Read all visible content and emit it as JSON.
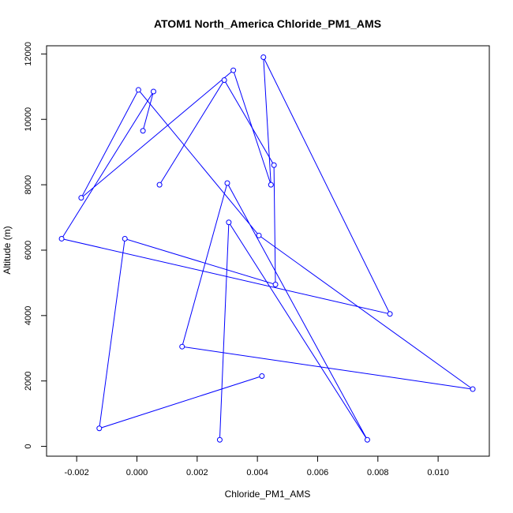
{
  "chart_data": {
    "type": "line",
    "title": "ATOM1 North_America Chloride_PM1_AMS",
    "xlabel": "Chloride_PM1_AMS",
    "ylabel": "Altitude (m)",
    "xlim": [
      -0.003,
      0.0117
    ],
    "ylim": [
      -300,
      12250
    ],
    "xticks": [
      -0.002,
      0.0,
      0.002,
      0.004,
      0.006,
      0.008,
      0.01
    ],
    "xtick_labels": [
      "-0.002",
      "0.000",
      "0.002",
      "0.004",
      "0.006",
      "0.008",
      "0.010"
    ],
    "yticks": [
      0,
      2000,
      4000,
      6000,
      8000,
      10000,
      12000
    ],
    "ytick_labels": [
      "0",
      "2000",
      "4000",
      "6000",
      "8000",
      "10000",
      "12000"
    ],
    "grid": false,
    "series": [
      {
        "color": "#0000ff",
        "marker": "open-circle",
        "x": [
          0.00275,
          0.00305,
          0.00765,
          0.003,
          0.0015,
          0.01115,
          0.00405,
          5e-05,
          -0.00185,
          0.0032,
          0.00445,
          0.0042,
          0.0084,
          -0.0025,
          0.00055,
          0.0002
        ],
        "y": [
          200,
          6850,
          200,
          8050,
          3050,
          1750,
          6450,
          10900,
          7600,
          11500,
          8000,
          11900,
          4050,
          6350,
          10850,
          9650
        ]
      },
      {
        "color": "#0000ff",
        "marker": "open-circle",
        "x": [
          0.00415,
          -0.00125,
          -0.0004,
          0.0046,
          0.00455,
          0.0029,
          0.00075
        ],
        "y": [
          2150,
          550,
          6350,
          4950,
          8600,
          11200,
          8000
        ]
      }
    ]
  }
}
